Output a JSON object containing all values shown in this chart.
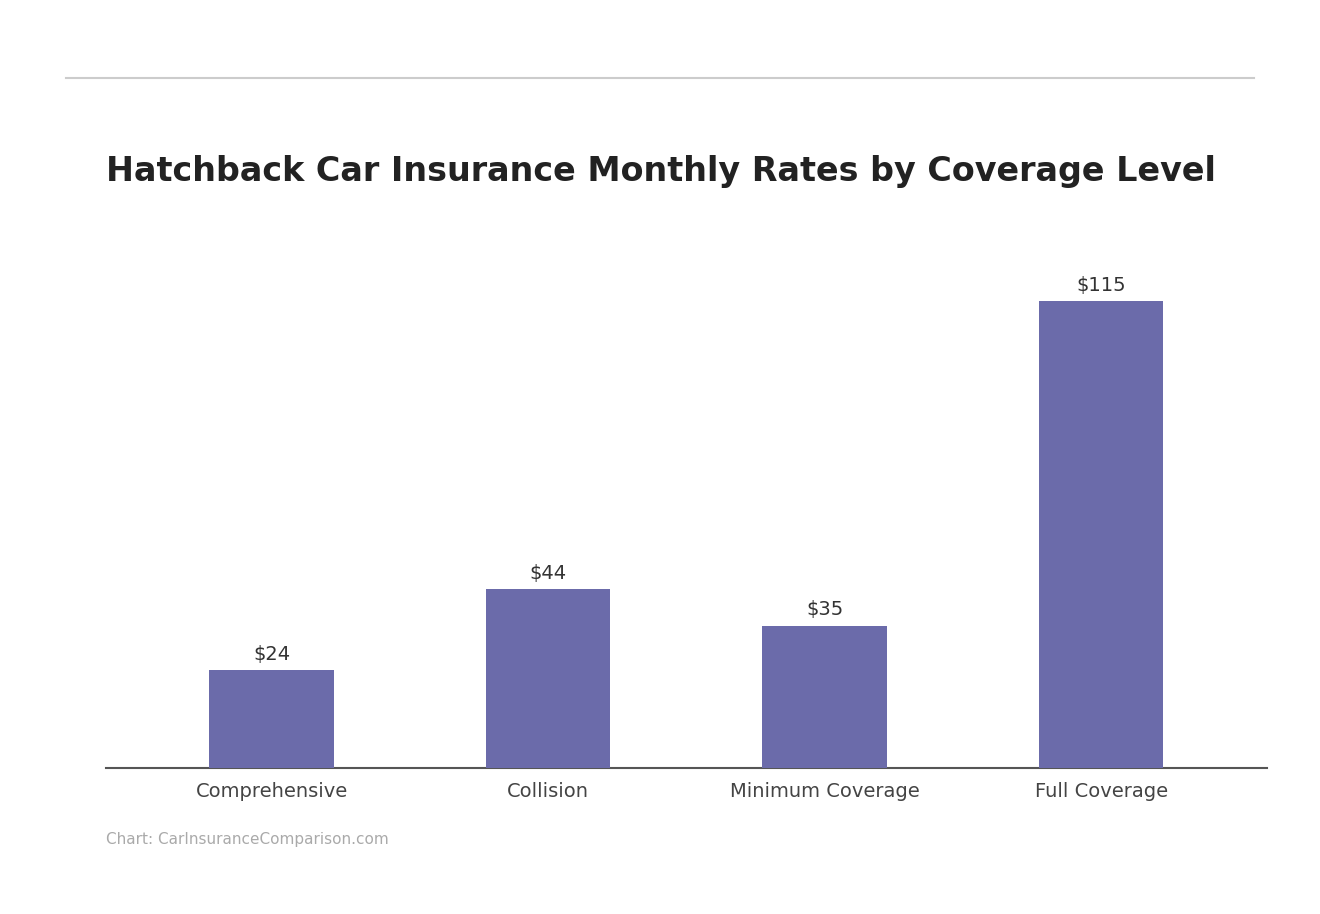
{
  "title": "Hatchback Car Insurance Monthly Rates by Coverage Level",
  "categories": [
    "Comprehensive",
    "Collision",
    "Minimum Coverage",
    "Full Coverage"
  ],
  "values": [
    24,
    44,
    35,
    115
  ],
  "bar_color": "#6b6baa",
  "background_color": "#ffffff",
  "title_fontsize": 24,
  "tick_fontsize": 14,
  "value_label_fontsize": 14,
  "value_labels": [
    "$24",
    "$44",
    "$35",
    "$115"
  ],
  "ylim": [
    0,
    135
  ],
  "source_text": "Chart: CarInsuranceComparison.com",
  "source_fontsize": 11,
  "source_color": "#aaaaaa",
  "grid_color": "#e0e0e0",
  "top_line_color": "#cccccc",
  "bottom_spine_color": "#555555",
  "bar_width": 0.45
}
